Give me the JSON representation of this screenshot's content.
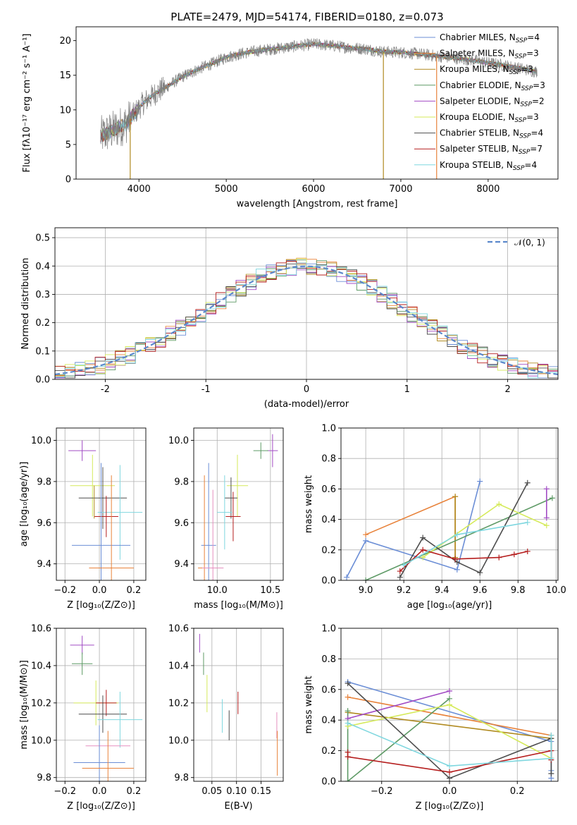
{
  "figure": {
    "title": "PLATE=2479, MJD=54174, FIBERID=0180, z=0.073"
  },
  "palette": {
    "Chabrier MILES": "#6b8ed6",
    "Salpeter MILES": "#e8823a",
    "Kroupa MILES": "#b08a20",
    "Chabrier ELODIE": "#5e9a66",
    "Salpeter ELODIE": "#a24cc4",
    "Kroupa ELODIE": "#d5ea5a",
    "Chabrier STELIB": "#4d4d4d",
    "Salpeter STELIB": "#b51e1e",
    "Kroupa STELIB": "#7fd7df",
    "data": "#808080",
    "pink": "#e58fbf",
    "normal": "#5b88cc",
    "grid": "#b0b0b0"
  },
  "chart_data": [
    {
      "id": "spectrum",
      "type": "line",
      "xlabel": "wavelength [Angstrom, rest frame]",
      "ylabel": "Flux [fλ10⁻¹⁷ erg cm⁻² s⁻¹ A⁻¹]",
      "xlim": [
        3280,
        8800
      ],
      "ylim": [
        0,
        22
      ],
      "xticks": [
        4000,
        5000,
        6000,
        7000,
        8000
      ],
      "yticks": [
        0,
        5,
        10,
        15,
        20
      ],
      "grid": false,
      "legend_position": "top-right",
      "legend": [
        {
          "base": "Chabrier MILES, N",
          "sub": "SSP",
          "suffix": "=4"
        },
        {
          "base": "Salpeter MILES, N",
          "sub": "SSP",
          "suffix": "=3"
        },
        {
          "base": "Kroupa MILES, N",
          "sub": "SSP",
          "suffix": "=3"
        },
        {
          "base": "Chabrier ELODIE, N",
          "sub": "SSP",
          "suffix": "=3"
        },
        {
          "base": "Salpeter ELODIE, N",
          "sub": "SSP",
          "suffix": "=2"
        },
        {
          "base": "Kroupa ELODIE, N",
          "sub": "SSP",
          "suffix": "=3"
        },
        {
          "base": "Chabrier STELIB, N",
          "sub": "SSP",
          "suffix": "=4"
        },
        {
          "base": "Salpeter STELIB, N",
          "sub": "SSP",
          "suffix": "=7"
        },
        {
          "base": "Kroupa STELIB, N",
          "sub": "SSP",
          "suffix": "=4"
        }
      ],
      "continuum": {
        "wavelength": [
          3560,
          3700,
          3850,
          3950,
          4050,
          4200,
          4350,
          4500,
          4700,
          4860,
          5000,
          5200,
          5400,
          5600,
          5800,
          6000,
          6200,
          6400,
          6600,
          6800,
          7000,
          7200,
          7400,
          7600,
          7800,
          8000,
          8200,
          8400,
          8560
        ],
        "flux": [
          6.2,
          7.0,
          8.0,
          9.5,
          11.0,
          12.5,
          13.6,
          14.8,
          16.0,
          16.8,
          17.6,
          18.2,
          18.6,
          18.9,
          19.2,
          19.5,
          19.3,
          19.0,
          18.8,
          18.4,
          18.3,
          18.1,
          17.8,
          17.5,
          17.2,
          16.8,
          16.4,
          15.9,
          15.5
        ]
      },
      "dropouts": [
        {
          "wavelength": 3900,
          "to": 0
        },
        {
          "wavelength": 6800,
          "to": 0
        },
        {
          "wavelength": 7410,
          "to": 0
        }
      ]
    },
    {
      "id": "residuals",
      "type": "histogram",
      "xlabel": "(data-model)/error",
      "ylabel": "Normed distribution",
      "xlim": [
        -2.5,
        2.5
      ],
      "ylim": [
        0,
        0.535
      ],
      "xticks": [
        -2,
        -1,
        0,
        1,
        2
      ],
      "yticks": [
        0,
        0.1,
        0.2,
        0.3,
        0.4,
        0.5
      ],
      "ytick_labels": [
        "0.0",
        "0.1",
        "0.2",
        "0.3",
        "0.4",
        "0.5"
      ],
      "grid": true,
      "legend_position": "top-right",
      "normal_label": "𝒩(0, 1)",
      "bin_width": 0.1
    },
    {
      "id": "age-vs-Z",
      "type": "errorbar",
      "xlabel": "Z [log₁₀(Z/Z⊙)]",
      "ylabel": "age  [log₁₀(age/yr)]",
      "xlim": [
        -0.25,
        0.27
      ],
      "ylim": [
        9.32,
        10.06
      ],
      "xticks": [
        -0.2,
        0.0,
        0.2
      ],
      "xtick_labels": [
        "−0.2",
        "0.0",
        "0.2"
      ],
      "yticks": [
        9.4,
        9.6,
        9.8,
        10.0
      ],
      "ytick_labels": [
        "9.4",
        "9.6",
        "9.8",
        "10.0"
      ],
      "grid": true,
      "points": [
        {
          "model": "Salpeter ELODIE",
          "x": -0.1,
          "xerr": 0.08,
          "y": 9.95,
          "yerr": 0.05
        },
        {
          "model": "Kroupa ELODIE",
          "x": -0.04,
          "xerr": 0.13,
          "y": 9.78,
          "yerr": 0.15
        },
        {
          "model": "Chabrier STELIB",
          "x": 0.02,
          "xerr": 0.14,
          "y": 9.72,
          "yerr": 0.15
        },
        {
          "model": "Kroupa STELIB",
          "x": 0.12,
          "xerr": 0.13,
          "y": 9.65,
          "yerr": 0.23
        },
        {
          "model": "Salpeter STELIB",
          "x": 0.04,
          "xerr": 0.07,
          "y": 9.63,
          "yerr": 0.1
        },
        {
          "model": "Chabrier MILES",
          "x": 0.01,
          "xerr": 0.17,
          "y": 9.49,
          "yerr": 0.4
        },
        {
          "model": "Salpeter MILES",
          "x": 0.07,
          "xerr": 0.13,
          "y": 9.38,
          "yerr": 0.45
        },
        {
          "model": "Kroupa MILES",
          "x": -0.03,
          "xerr": 0.0,
          "y": 9.7,
          "yerr": 0.08
        }
      ]
    },
    {
      "id": "age-vs-mass",
      "type": "errorbar",
      "xlabel": "mass [log₁₀(M/M⊙)]",
      "ylabel": "",
      "xlim": [
        9.78,
        10.62
      ],
      "ylim": [
        9.32,
        10.06
      ],
      "xticks": [
        10.0,
        10.5
      ],
      "xtick_labels": [
        "10.0",
        "10.5"
      ],
      "yticks": [
        9.4,
        9.6,
        9.8,
        10.0
      ],
      "ytick_labels": [
        "9.4",
        "9.6",
        "9.8",
        "10.0"
      ],
      "grid": true,
      "points": [
        {
          "model": "Salpeter ELODIE",
          "x": 10.52,
          "xerr": 0.05,
          "y": 9.95,
          "yerr": 0.08
        },
        {
          "model": "Chabrier ELODIE",
          "x": 10.41,
          "xerr": 0.07,
          "y": 9.95,
          "yerr": 0.04
        },
        {
          "model": "Kroupa ELODIE",
          "x": 10.19,
          "xerr": 0.1,
          "y": 9.78,
          "yerr": 0.15
        },
        {
          "model": "Chabrier STELIB",
          "x": 10.13,
          "xerr": 0.06,
          "y": 9.72,
          "yerr": 0.1
        },
        {
          "model": "Kroupa STELIB",
          "x": 10.07,
          "xerr": 0.07,
          "y": 9.65,
          "yerr": 0.18
        },
        {
          "model": "Salpeter STELIB",
          "x": 10.15,
          "xerr": 0.07,
          "y": 9.63,
          "yerr": 0.12
        },
        {
          "model": "Chabrier MILES",
          "x": 9.92,
          "xerr": 0.07,
          "y": 9.49,
          "yerr": 0.4
        },
        {
          "model": "Salpeter MILES",
          "x": 9.88,
          "xerr": 0.06,
          "y": 9.38,
          "yerr": 0.45
        },
        {
          "model": "pink",
          "x": 9.96,
          "xerr": 0.1,
          "y": 9.38,
          "yerr": 0.38
        }
      ]
    },
    {
      "id": "massweight-vs-age",
      "type": "line",
      "xlabel": "age  [log₁₀(age/yr)]",
      "ylabel": "mass weight",
      "xlim": [
        8.87,
        10.01
      ],
      "ylim": [
        0,
        1
      ],
      "xticks": [
        9.0,
        9.2,
        9.4,
        9.6,
        9.8,
        10.0
      ],
      "xtick_labels": [
        "9.0",
        "9.2",
        "9.4",
        "9.6",
        "9.8",
        "10.0"
      ],
      "yticks": [
        0,
        0.2,
        0.4,
        0.6,
        0.8,
        1.0
      ],
      "ytick_labels": [
        "0.0",
        "0.2",
        "0.4",
        "0.6",
        "0.8",
        "1.0"
      ],
      "grid": true,
      "series": [
        {
          "model": "Chabrier MILES",
          "x": [
            8.9,
            9.0,
            9.48,
            9.6
          ],
          "y": [
            0.02,
            0.26,
            0.07,
            0.65
          ]
        },
        {
          "model": "Salpeter MILES",
          "x": [
            9.0,
            9.47,
            9.47
          ],
          "y": [
            0.3,
            0.55,
            0.15
          ]
        },
        {
          "model": "Kroupa MILES",
          "x": [
            9.47,
            9.47
          ],
          "y": [
            0.55,
            0.15
          ]
        },
        {
          "model": "Chabrier ELODIE",
          "x": [
            9.0,
            9.98
          ],
          "y": [
            0.0,
            0.54
          ]
        },
        {
          "model": "Salpeter ELODIE",
          "x": [
            9.95,
            9.95
          ],
          "y": [
            0.6,
            0.41
          ]
        },
        {
          "model": "Kroupa ELODIE",
          "x": [
            9.3,
            9.7,
            9.95
          ],
          "y": [
            0.15,
            0.5,
            0.36
          ]
        },
        {
          "model": "Chabrier STELIB",
          "x": [
            9.18,
            9.3,
            9.48,
            9.6,
            9.85
          ],
          "y": [
            0.02,
            0.28,
            0.12,
            0.05,
            0.64
          ]
        },
        {
          "model": "Salpeter STELIB",
          "x": [
            9.18,
            9.3,
            9.47,
            9.7,
            9.78,
            9.85
          ],
          "y": [
            0.06,
            0.2,
            0.14,
            0.15,
            0.17,
            0.19
          ]
        },
        {
          "model": "Kroupa STELIB",
          "x": [
            9.2,
            9.48,
            9.85
          ],
          "y": [
            0.1,
            0.3,
            0.38
          ]
        }
      ]
    },
    {
      "id": "mass-vs-Z",
      "type": "errorbar",
      "xlabel": "Z [log₁₀(Z/Z⊙)]",
      "ylabel": "mass [log₁₀(M/M⊙)]",
      "xlim": [
        -0.25,
        0.27
      ],
      "ylim": [
        9.78,
        10.6
      ],
      "xticks": [
        -0.2,
        0.0,
        0.2
      ],
      "xtick_labels": [
        "−0.2",
        "0.0",
        "0.2"
      ],
      "yticks": [
        9.8,
        10.0,
        10.2,
        10.4,
        10.6
      ],
      "ytick_labels": [
        "9.8",
        "10.0",
        "10.2",
        "10.4",
        "10.6"
      ],
      "grid": true,
      "points": [
        {
          "model": "Salpeter ELODIE",
          "x": -0.1,
          "xerr": 0.07,
          "y": 10.51,
          "yerr": 0.05
        },
        {
          "model": "Chabrier ELODIE",
          "x": -0.1,
          "xerr": 0.06,
          "y": 10.41,
          "yerr": 0.06
        },
        {
          "model": "Kroupa ELODIE",
          "x": -0.02,
          "xerr": 0.13,
          "y": 10.2,
          "yerr": 0.12
        },
        {
          "model": "Salpeter STELIB",
          "x": 0.04,
          "xerr": 0.06,
          "y": 10.2,
          "yerr": 0.07
        },
        {
          "model": "Chabrier STELIB",
          "x": 0.02,
          "xerr": 0.14,
          "y": 10.14,
          "yerr": 0.1
        },
        {
          "model": "Kroupa STELIB",
          "x": 0.12,
          "xerr": 0.13,
          "y": 10.11,
          "yerr": 0.15
        },
        {
          "model": "pink",
          "x": 0.05,
          "xerr": 0.13,
          "y": 9.97,
          "yerr": 0.0
        },
        {
          "model": "Chabrier MILES",
          "x": 0.0,
          "xerr": 0.15,
          "y": 9.88,
          "yerr": 0.2
        },
        {
          "model": "Salpeter MILES",
          "x": 0.05,
          "xerr": 0.15,
          "y": 9.85,
          "yerr": 0.2
        }
      ]
    },
    {
      "id": "mass-vs-EBV",
      "type": "errorbar",
      "xlabel": "E(B-V)",
      "ylabel": "",
      "xlim": [
        0.013,
        0.195
      ],
      "ylim": [
        9.78,
        10.6
      ],
      "xticks": [
        0.05,
        0.1,
        0.15
      ],
      "xtick_labels": [
        "0.05",
        "0.10",
        "0.15"
      ],
      "yticks": [
        9.8,
        10.0,
        10.2,
        10.4,
        10.6
      ],
      "ytick_labels": [
        "9.8",
        "10.0",
        "10.2",
        "10.4",
        "10.6"
      ],
      "grid": true,
      "points": [
        {
          "model": "Salpeter ELODIE",
          "x": 0.025,
          "xerr": 0,
          "y": 10.52,
          "yerr": 0.05
        },
        {
          "model": "Chabrier ELODIE",
          "x": 0.033,
          "xerr": 0,
          "y": 10.41,
          "yerr": 0.06
        },
        {
          "model": "Kroupa ELODIE",
          "x": 0.04,
          "xerr": 0,
          "y": 10.25,
          "yerr": 0.1
        },
        {
          "model": "Salpeter STELIB",
          "x": 0.103,
          "xerr": 0,
          "y": 10.2,
          "yerr": 0.06
        },
        {
          "model": "Kroupa STELIB",
          "x": 0.071,
          "xerr": 0,
          "y": 10.13,
          "yerr": 0.09
        },
        {
          "model": "Chabrier STELIB",
          "x": 0.085,
          "xerr": 0,
          "y": 10.08,
          "yerr": 0.08
        },
        {
          "model": "pink",
          "x": 0.182,
          "xerr": 0,
          "y": 10.08,
          "yerr": 0.07
        },
        {
          "model": "Salpeter MILES",
          "x": 0.183,
          "xerr": 0,
          "y": 9.93,
          "yerr": 0.12
        }
      ]
    },
    {
      "id": "massweight-vs-Z",
      "type": "line",
      "xlabel": "Z [log₁₀(Z/Z⊙)]",
      "ylabel": "mass weight",
      "xlim": [
        -0.32,
        0.32
      ],
      "ylim": [
        0,
        1
      ],
      "xticks": [
        -0.2,
        0.0,
        0.2
      ],
      "xtick_labels": [
        "−0.2",
        "0.0",
        "0.2"
      ],
      "yticks": [
        0,
        0.2,
        0.4,
        0.6,
        0.8,
        1.0
      ],
      "ytick_labels": [
        "0.0",
        "0.2",
        "0.4",
        "0.6",
        "0.8",
        "1.0"
      ],
      "grid": true,
      "series": [
        {
          "model": "Chabrier MILES",
          "x": [
            -0.3,
            0.3,
            0.3,
            0.3
          ],
          "y": [
            0.65,
            0.26,
            0.07,
            0.02
          ]
        },
        {
          "model": "Salpeter MILES",
          "x": [
            -0.3,
            0.3,
            0.3
          ],
          "y": [
            0.55,
            0.3,
            0.15
          ]
        },
        {
          "model": "Kroupa MILES",
          "x": [
            -0.3,
            0.3
          ],
          "y": [
            0.45,
            0.28
          ]
        },
        {
          "model": "Chabrier ELODIE",
          "x": [
            -0.3,
            -0.3,
            0.0
          ],
          "y": [
            0.46,
            0.0,
            0.54
          ]
        },
        {
          "model": "Salpeter ELODIE",
          "x": [
            -0.3,
            0.0
          ],
          "y": [
            0.41,
            0.59
          ]
        },
        {
          "model": "Kroupa ELODIE",
          "x": [
            -0.3,
            0.0,
            0.3
          ],
          "y": [
            0.36,
            0.5,
            0.15
          ]
        },
        {
          "model": "Chabrier STELIB",
          "x": [
            -0.3,
            0.0,
            0.3,
            0.3
          ],
          "y": [
            0.64,
            0.02,
            0.28,
            0.05
          ]
        },
        {
          "model": "Salpeter STELIB",
          "x": [
            -0.3,
            -0.3,
            0.0,
            0.3,
            0.3
          ],
          "y": [
            0.19,
            0.16,
            0.06,
            0.2,
            0.14
          ]
        },
        {
          "model": "Kroupa STELIB",
          "x": [
            -0.3,
            0.0,
            0.3,
            0.3
          ],
          "y": [
            0.38,
            0.1,
            0.15,
            0.3
          ]
        }
      ]
    }
  ]
}
